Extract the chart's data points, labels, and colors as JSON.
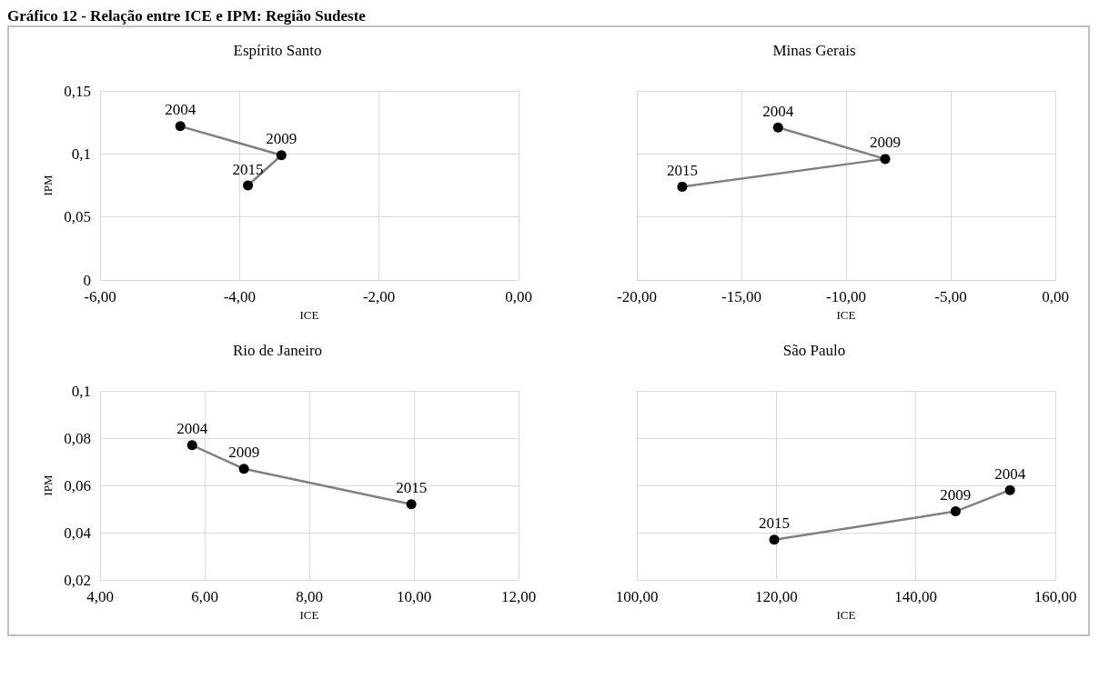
{
  "chart_data": [
    {
      "type": "line",
      "title": "Espírito Santo",
      "annotations": [
        "Gráfico 12 - Relação entre ICE e IPM: Região Sudeste",
        {
          "text": "2004",
          "x": -4.85,
          "y": 0.122
        },
        {
          "text": "2009",
          "x": -3.4,
          "y": 0.099
        },
        {
          "text": "2015",
          "x": -3.88,
          "y": 0.075
        }
      ],
      "xlabel": "ICE",
      "ylabel": "IPM",
      "marker": "circle",
      "grid": true,
      "xlim": [
        -6,
        0
      ],
      "xticks": [
        {
          "value": -6,
          "label": "-6,00"
        },
        {
          "value": -4,
          "label": "-4,00"
        },
        {
          "value": -2,
          "label": "-2,00"
        },
        {
          "value": 0,
          "label": "0,00"
        }
      ],
      "ylim": [
        0,
        0.15
      ],
      "yticks": [
        0,
        {
          "value": 0.05,
          "label": "0,05"
        },
        {
          "value": 0.1,
          "label": "0,1"
        },
        {
          "value": 0.15,
          "label": "0,15"
        }
      ],
      "series": [
        {
          "color": "#808080",
          "x": [
            -4.85,
            -3.4,
            -3.88
          ],
          "values": [
            0.122,
            0.099,
            0.075
          ]
        }
      ]
    },
    {
      "type": "line",
      "title": "Minas Gerais",
      "annotations": [
        {
          "text": "2004",
          "x": -13.25,
          "y": 0.121
        },
        {
          "text": "2009",
          "x": -8.13,
          "y": 0.096
        },
        {
          "text": "2015",
          "x": -17.83,
          "y": 0.074
        }
      ],
      "xlabel": "ICE",
      "marker": "circle",
      "grid": true,
      "tick_labels": "x",
      "xlim": [
        -20,
        0
      ],
      "xticks": [
        {
          "value": -20,
          "label": "-20,00"
        },
        {
          "value": -15,
          "label": "-15,00"
        },
        {
          "value": -10,
          "label": "-10,00"
        },
        {
          "value": -5,
          "label": "-5,00"
        },
        {
          "value": 0,
          "label": "0,00"
        }
      ],
      "ylim": [
        0,
        0.15
      ],
      "yticks": [
        0,
        0.05,
        0.1,
        0.15
      ],
      "series": [
        {
          "color": "#808080",
          "x": [
            -13.25,
            -8.13,
            -17.83
          ],
          "values": [
            0.121,
            0.096,
            0.074
          ]
        }
      ]
    },
    {
      "type": "line",
      "title": "Rio de Janeiro",
      "annotations": [
        {
          "text": "2004",
          "x": 5.76,
          "y": 0.077
        },
        {
          "text": "2009",
          "x": 6.75,
          "y": 0.067
        },
        {
          "text": "2015",
          "x": 9.95,
          "y": 0.052
        }
      ],
      "xlabel": "ICE",
      "ylabel": "IPM",
      "marker": "circle",
      "grid": true,
      "xlim": [
        4,
        12
      ],
      "xticks": [
        {
          "value": 4,
          "label": "4,00"
        },
        {
          "value": 6,
          "label": "6,00"
        },
        {
          "value": 8,
          "label": "8,00"
        },
        {
          "value": 10,
          "label": "10,00"
        },
        {
          "value": 12,
          "label": "12,00"
        }
      ],
      "ylim": [
        0.02,
        0.1
      ],
      "yticks": [
        {
          "value": 0.02,
          "label": "0,02"
        },
        {
          "value": 0.04,
          "label": "0,04"
        },
        {
          "value": 0.06,
          "label": "0,06"
        },
        {
          "value": 0.08,
          "label": "0,08"
        },
        {
          "value": 0.1,
          "label": "0,1"
        }
      ],
      "series": [
        {
          "color": "#808080",
          "x": [
            5.76,
            6.75,
            9.95
          ],
          "values": [
            0.077,
            0.067,
            0.052
          ]
        }
      ]
    },
    {
      "type": "line",
      "title": "São Paulo",
      "annotations": [
        {
          "text": "2004",
          "x": 153.5,
          "y": 0.058
        },
        {
          "text": "2009",
          "x": 145.7,
          "y": 0.049
        },
        {
          "text": "2015",
          "x": 119.7,
          "y": 0.037
        }
      ],
      "xlabel": "ICE",
      "marker": "circle",
      "grid": true,
      "tick_labels": "x",
      "xlim": [
        100,
        160
      ],
      "xticks": [
        {
          "value": 100,
          "label": "100,00"
        },
        {
          "value": 120,
          "label": "120,00"
        },
        {
          "value": 140,
          "label": "140,00"
        },
        {
          "value": 160,
          "label": "160,00"
        }
      ],
      "ylim": [
        0.02,
        0.1
      ],
      "yticks": [
        0.02,
        0.04,
        0.06,
        0.08,
        0.1
      ],
      "series": [
        {
          "color": "#808080",
          "x": [
            153.5,
            145.7,
            119.7
          ],
          "values": [
            0.058,
            0.049,
            0.037
          ]
        }
      ]
    }
  ]
}
